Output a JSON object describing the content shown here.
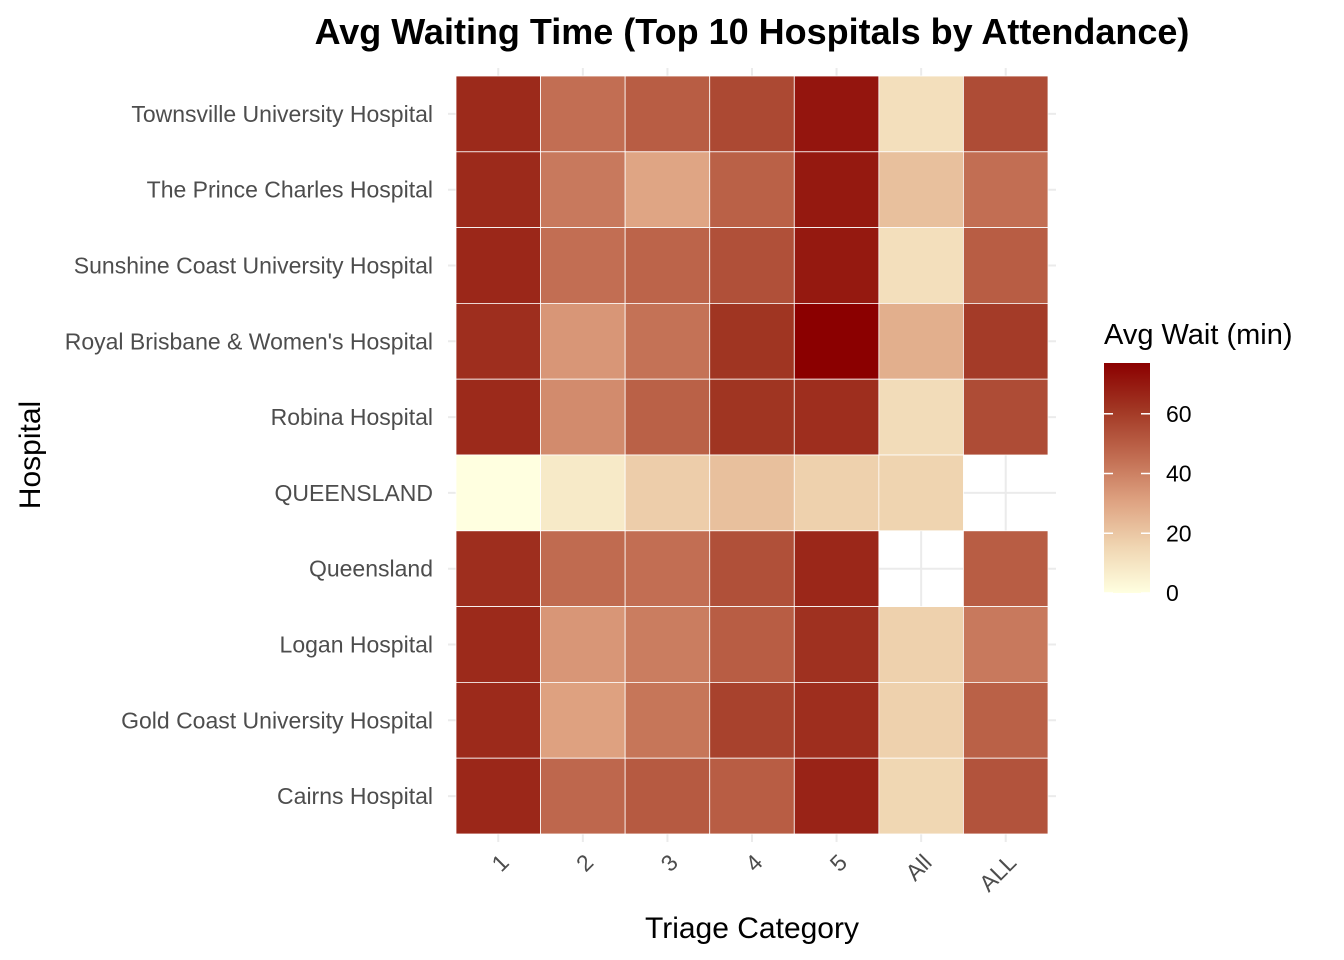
{
  "chart_data": {
    "type": "heatmap",
    "title": "Avg Waiting Time (Top 10 Hospitals by Attendance)",
    "xlabel": "Triage Category",
    "ylabel": "Hospital",
    "x_categories": [
      "1",
      "2",
      "3",
      "4",
      "5",
      "All",
      "ALL"
    ],
    "y_categories": [
      "Townsville University Hospital",
      "The Prince Charles Hospital",
      "Sunshine Coast University Hospital",
      "Royal Brisbane & Women's Hospital",
      "Robina Hospital",
      "QUEENSLAND",
      "Queensland",
      "Logan Hospital",
      "Gold Coast University Hospital",
      "Cairns Hospital"
    ],
    "values": [
      [
        65,
        45,
        50,
        56,
        71,
        12,
        55
      ],
      [
        65,
        42,
        30,
        49,
        70,
        22,
        45
      ],
      [
        66,
        45,
        48,
        54,
        70,
        12,
        50
      ],
      [
        64,
        34,
        44,
        62,
        77,
        27,
        60
      ],
      [
        65,
        37,
        49,
        62,
        64,
        13,
        55
      ],
      [
        0,
        8,
        18,
        22,
        17,
        16,
        null
      ],
      [
        64,
        46,
        45,
        54,
        66,
        null,
        50
      ],
      [
        65,
        34,
        41,
        50,
        63,
        17,
        42
      ],
      [
        65,
        31,
        43,
        58,
        64,
        17,
        49
      ],
      [
        66,
        47,
        51,
        50,
        67,
        15,
        53
      ]
    ],
    "legend": {
      "title": "Avg Wait (min)",
      "ticks": [
        0,
        20,
        40,
        60
      ],
      "range": [
        0,
        77
      ],
      "colors": [
        "#FFFFE0",
        "#F0D6B2",
        "#DEA281",
        "#C06A4F",
        "#A13623",
        "#8B0000"
      ],
      "placement": "right"
    },
    "grid": true,
    "missing_color": "#FFFFFF"
  }
}
